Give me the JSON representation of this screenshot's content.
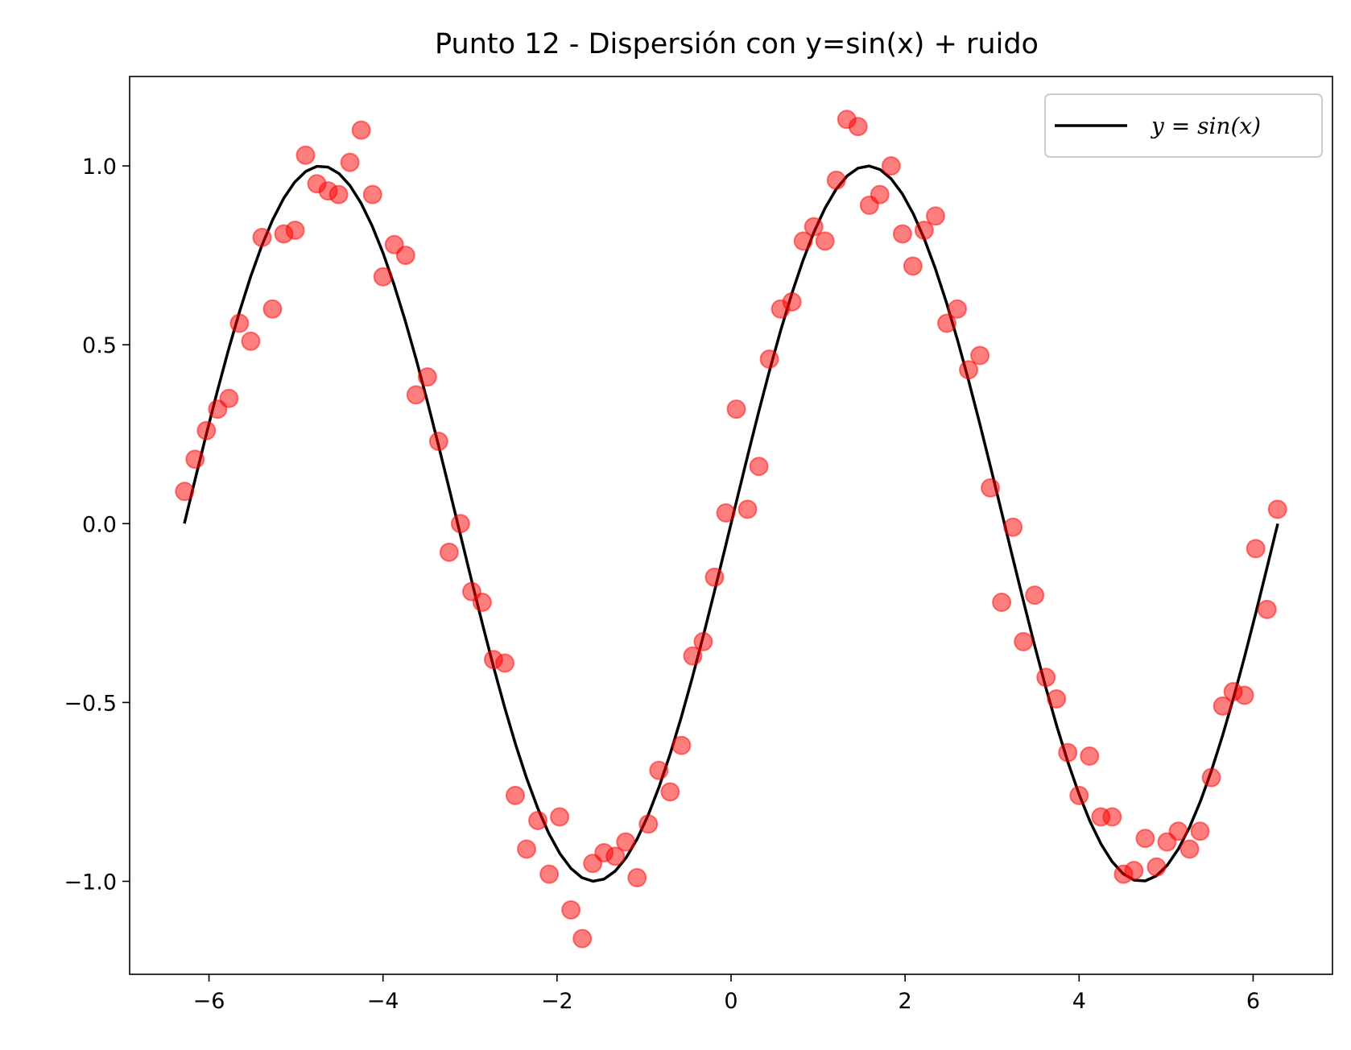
{
  "chart_data": {
    "type": "scatter",
    "title": "Punto 12 - Dispersión con y=sin(x) + ruido",
    "xlabel": "",
    "ylabel": "",
    "xlim": [
      -6.912,
      6.912
    ],
    "ylim": [
      -1.26,
      1.25
    ],
    "x_ticks": [
      -6,
      -4,
      -2,
      0,
      2,
      4,
      6
    ],
    "x_tick_labels": [
      "−6",
      "−4",
      "−2",
      "0",
      "2",
      "4",
      "6"
    ],
    "y_ticks": [
      -1.0,
      -0.5,
      0.0,
      0.5,
      1.0
    ],
    "y_tick_labels": [
      "−1.0",
      "−0.5",
      "0.0",
      "0.5",
      "1.0"
    ],
    "grid": false,
    "legend": {
      "position": "top-right",
      "entries": [
        "y = sin(x)"
      ]
    },
    "line_series": {
      "name": "y = sin(x)",
      "function": "sin",
      "x_range": [
        -6.283,
        6.283
      ],
      "color": "#000000"
    },
    "scatter_series": {
      "color": "#ff0000",
      "opacity": 0.5,
      "points": [
        [
          -6.28,
          0.09
        ],
        [
          -6.16,
          0.18
        ],
        [
          -6.03,
          0.26
        ],
        [
          -5.9,
          0.32
        ],
        [
          -5.77,
          0.35
        ],
        [
          -5.65,
          0.56
        ],
        [
          -5.52,
          0.51
        ],
        [
          -5.39,
          0.8
        ],
        [
          -5.27,
          0.6
        ],
        [
          -5.14,
          0.81
        ],
        [
          -5.01,
          0.82
        ],
        [
          -4.89,
          1.03
        ],
        [
          -4.76,
          0.95
        ],
        [
          -4.63,
          0.93
        ],
        [
          -4.51,
          0.92
        ],
        [
          -4.38,
          1.01
        ],
        [
          -4.25,
          1.1
        ],
        [
          -4.12,
          0.92
        ],
        [
          -4.0,
          0.69
        ],
        [
          -3.87,
          0.78
        ],
        [
          -3.74,
          0.75
        ],
        [
          -3.62,
          0.36
        ],
        [
          -3.49,
          0.41
        ],
        [
          -3.36,
          0.23
        ],
        [
          -3.24,
          -0.08
        ],
        [
          -3.11,
          0.0
        ],
        [
          -2.98,
          -0.19
        ],
        [
          -2.86,
          -0.22
        ],
        [
          -2.73,
          -0.38
        ],
        [
          -2.6,
          -0.39
        ],
        [
          -2.48,
          -0.76
        ],
        [
          -2.35,
          -0.91
        ],
        [
          -2.22,
          -0.83
        ],
        [
          -2.09,
          -0.98
        ],
        [
          -1.97,
          -0.82
        ],
        [
          -1.84,
          -1.08
        ],
        [
          -1.71,
          -1.16
        ],
        [
          -1.59,
          -0.95
        ],
        [
          -1.46,
          -0.92
        ],
        [
          -1.33,
          -0.93
        ],
        [
          -1.21,
          -0.89
        ],
        [
          -1.08,
          -0.99
        ],
        [
          -0.95,
          -0.84
        ],
        [
          -0.83,
          -0.69
        ],
        [
          -0.7,
          -0.75
        ],
        [
          -0.57,
          -0.62
        ],
        [
          -0.44,
          -0.37
        ],
        [
          -0.32,
          -0.33
        ],
        [
          -0.19,
          -0.15
        ],
        [
          -0.06,
          0.03
        ],
        [
          0.06,
          0.32
        ],
        [
          0.19,
          0.04
        ],
        [
          0.32,
          0.16
        ],
        [
          0.44,
          0.46
        ],
        [
          0.57,
          0.6
        ],
        [
          0.7,
          0.62
        ],
        [
          0.83,
          0.79
        ],
        [
          0.95,
          0.83
        ],
        [
          1.08,
          0.79
        ],
        [
          1.21,
          0.96
        ],
        [
          1.33,
          1.13
        ],
        [
          1.46,
          1.11
        ],
        [
          1.59,
          0.89
        ],
        [
          1.71,
          0.92
        ],
        [
          1.84,
          1.0
        ],
        [
          1.97,
          0.81
        ],
        [
          2.09,
          0.72
        ],
        [
          2.22,
          0.82
        ],
        [
          2.35,
          0.86
        ],
        [
          2.48,
          0.56
        ],
        [
          2.6,
          0.6
        ],
        [
          2.73,
          0.43
        ],
        [
          2.86,
          0.47
        ],
        [
          2.98,
          0.1
        ],
        [
          3.11,
          -0.22
        ],
        [
          3.24,
          -0.01
        ],
        [
          3.36,
          -0.33
        ],
        [
          3.49,
          -0.2
        ],
        [
          3.62,
          -0.43
        ],
        [
          3.74,
          -0.49
        ],
        [
          3.87,
          -0.64
        ],
        [
          4.0,
          -0.76
        ],
        [
          4.12,
          -0.65
        ],
        [
          4.25,
          -0.82
        ],
        [
          4.38,
          -0.82
        ],
        [
          4.51,
          -0.98
        ],
        [
          4.63,
          -0.97
        ],
        [
          4.76,
          -0.88
        ],
        [
          4.89,
          -0.96
        ],
        [
          5.01,
          -0.89
        ],
        [
          5.14,
          -0.86
        ],
        [
          5.27,
          -0.91
        ],
        [
          5.39,
          -0.86
        ],
        [
          5.52,
          -0.71
        ],
        [
          5.65,
          -0.51
        ],
        [
          5.77,
          -0.47
        ],
        [
          5.9,
          -0.48
        ],
        [
          6.03,
          -0.07
        ],
        [
          6.16,
          -0.24
        ],
        [
          6.28,
          0.04
        ]
      ]
    }
  }
}
